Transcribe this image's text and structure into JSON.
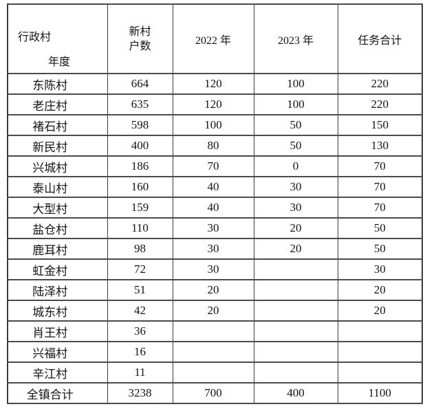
{
  "table": {
    "corner": {
      "row_axis_label": "行政村",
      "col_axis_label": "年度"
    },
    "columns": {
      "households": "新村\n户数",
      "year2022": "2022 年",
      "year2023": "2023 年",
      "task_total": "任务合计"
    },
    "rows": [
      [
        "东陈村",
        "664",
        "120",
        "100",
        "220"
      ],
      [
        "老庄村",
        "635",
        "120",
        "100",
        "220"
      ],
      [
        "褚石村",
        "598",
        "100",
        "50",
        "150"
      ],
      [
        "新民村",
        "400",
        "80",
        "50",
        "130"
      ],
      [
        "兴城村",
        "186",
        "70",
        "0",
        "70"
      ],
      [
        "泰山村",
        "160",
        "40",
        "30",
        "70"
      ],
      [
        "大型村",
        "159",
        "40",
        "30",
        "70"
      ],
      [
        "盐仓村",
        "110",
        "30",
        "20",
        "50"
      ],
      [
        "鹿耳村",
        "98",
        "30",
        "20",
        "50"
      ],
      [
        "虹金村",
        "72",
        "30",
        "",
        "30"
      ],
      [
        "陆泽村",
        "51",
        "20",
        "",
        "20"
      ],
      [
        "城东村",
        "42",
        "20",
        "",
        "20"
      ],
      [
        "肖王村",
        "36",
        "",
        "",
        ""
      ],
      [
        "兴福村",
        "16",
        "",
        "",
        ""
      ],
      [
        "辛江村",
        "11",
        "",
        "",
        ""
      ],
      [
        "全镇合计",
        "3238",
        "700",
        "400",
        "1100"
      ]
    ]
  },
  "colors": {
    "border": "#3a3a3a",
    "text": "#141414",
    "background": "#ffffff"
  }
}
